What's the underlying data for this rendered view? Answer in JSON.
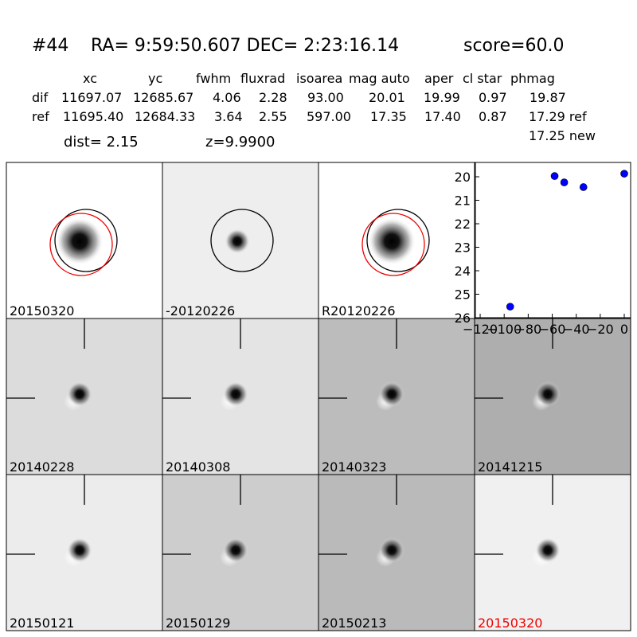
{
  "header": {
    "id": "#44",
    "coords": "RA= 9:59:50.607 DEC= 2:23:16.14",
    "score": "score=60.0"
  },
  "table": {
    "columns": [
      "xc",
      "yc",
      "fwhm",
      "fluxrad",
      "isoarea",
      "mag auto",
      "aper",
      "cl star",
      "phmag"
    ],
    "rows": [
      [
        "dif",
        "11697.07",
        "12685.67",
        "4.06",
        "2.28",
        "93.00",
        "20.01",
        "19.99",
        "0.97",
        "19.87"
      ],
      [
        "ref",
        "11695.40",
        "12684.33",
        "3.64",
        "2.55",
        "597.00",
        "17.35",
        "17.40",
        "0.87",
        "17.29 ref"
      ]
    ],
    "note": "17.25 new"
  },
  "info": {
    "dist": "dist=  2.15",
    "z": "z=9.9900"
  },
  "panels": {
    "labels": [
      "20150320",
      "-20120226",
      "R20120226",
      "20140228",
      "20140308",
      "20140323",
      "20141215",
      "20150121",
      "20150129",
      "20150213",
      "20150320"
    ]
  },
  "chart_data": {
    "type": "scatter",
    "color": "#0000ff",
    "x": [
      -95,
      -58,
      -50,
      -34,
      0
    ],
    "values": [
      25.53,
      19.97,
      20.24,
      20.44,
      19.87
    ],
    "xlim": [
      -124,
      5.3
    ],
    "ylim": [
      19.39,
      26
    ],
    "y_inverted": true,
    "xticks": [
      {
        "value": -120,
        "label": "−120"
      },
      {
        "value": -100,
        "label": "−100"
      },
      {
        "value": -80,
        "label": "−80"
      },
      {
        "value": -60,
        "label": "−60"
      },
      {
        "value": -40,
        "label": "−40"
      },
      {
        "value": -20,
        "label": "−20"
      },
      0
    ],
    "yticks": [
      20,
      21,
      22,
      23,
      24,
      25,
      26
    ]
  }
}
